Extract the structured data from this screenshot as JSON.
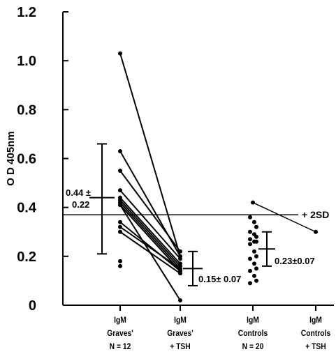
{
  "chart_data": {
    "type": "scatter",
    "ylabel": "O D 405nm",
    "xlabel": "",
    "ylim": [
      0,
      1.2
    ],
    "yticks": [
      {
        "value": 0,
        "label": "0"
      },
      {
        "value": 0.2,
        "label": "0.2"
      },
      {
        "value": 0.4,
        "label": "0.4"
      },
      {
        "value": 0.6,
        "label": "0.6"
      },
      {
        "value": 0.8,
        "label": "0.8"
      },
      {
        "value": 1.0,
        "label": "1.0"
      },
      {
        "value": 1.2,
        "label": "1.2"
      }
    ],
    "groups": [
      {
        "lines": [
          "IgM",
          "Graves'",
          "N = 12"
        ]
      },
      {
        "lines": [
          "IgM",
          "Graves'",
          "+ TSH"
        ]
      },
      {
        "lines": [
          "IgM",
          "Controls",
          "N = 20"
        ]
      },
      {
        "lines": [
          "IgM",
          "Controls",
          "+ TSH"
        ]
      }
    ],
    "reference_line": {
      "value": 0.37,
      "label": "+ 2SD"
    },
    "paired_graves": [
      {
        "before": 1.03,
        "after": 0.2
      },
      {
        "before": 0.63,
        "after": 0.2
      },
      {
        "before": 0.55,
        "after": 0.22
      },
      {
        "before": 0.47,
        "after": 0.19
      },
      {
        "before": 0.44,
        "after": 0.17
      },
      {
        "before": 0.43,
        "after": 0.16
      },
      {
        "before": 0.42,
        "after": 0.15
      },
      {
        "before": 0.41,
        "after": 0.14
      },
      {
        "before": 0.34,
        "after": 0.14
      },
      {
        "before": 0.32,
        "after": 0.15
      },
      {
        "before": 0.3,
        "after": 0.13
      },
      {
        "before": 0.41,
        "after": 0.02
      }
    ],
    "unpaired_graves": [
      0.18,
      0.16
    ],
    "paired_controls": [
      {
        "before": 0.42,
        "after": 0.3
      }
    ],
    "controls_points": [
      0.36,
      0.34,
      0.32,
      0.3,
      0.29,
      0.28,
      0.27,
      0.26,
      0.26,
      0.25,
      0.22,
      0.2,
      0.19,
      0.17,
      0.15,
      0.14,
      0.12,
      0.1,
      0.09
    ],
    "error_bars": [
      {
        "group": 0,
        "mean": 0.44,
        "low": 0.21,
        "high": 0.66,
        "label_line1": "0.44 ±",
        "label_line2": "0.22"
      },
      {
        "group": 1,
        "mean": 0.15,
        "low": 0.08,
        "high": 0.22,
        "label_line1": "0.15± 0.07",
        "label_line2": ""
      },
      {
        "group": 2,
        "mean": 0.23,
        "low": 0.16,
        "high": 0.3,
        "label_line1": "0.23±0.07",
        "label_line2": ""
      }
    ]
  }
}
